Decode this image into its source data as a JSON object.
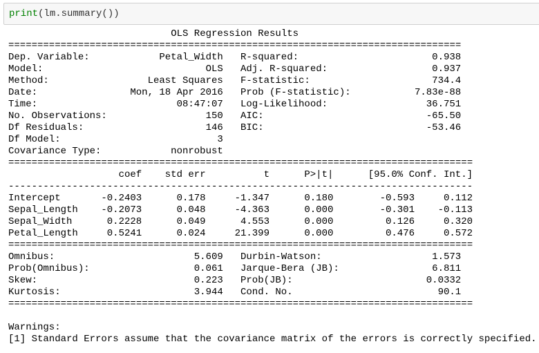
{
  "input": {
    "keyword": "print",
    "rest": "(lm.summary())"
  },
  "output": {
    "title": "OLS Regression Results",
    "rules": [
      "==============================================================================",
      "================================================================================",
      "--------------------------------------------------------------------------------",
      "================================================================================",
      "================================================================================"
    ],
    "model_info": [
      [
        "Dep. Variable:",
        "Petal_Width",
        "R-squared:",
        "0.938"
      ],
      [
        "Model:",
        "OLS",
        "Adj. R-squared:",
        "0.937"
      ],
      [
        "Method:",
        "Least Squares",
        "F-statistic:",
        "734.4"
      ],
      [
        "Date:",
        "Mon, 18 Apr 2016",
        "Prob (F-statistic):",
        "7.83e-88"
      ],
      [
        "Time:",
        "08:47:07",
        "Log-Likelihood:",
        "36.751"
      ],
      [
        "No. Observations:",
        "150",
        "AIC:",
        "-65.50"
      ],
      [
        "Df Residuals:",
        "146",
        "BIC:",
        "-53.46"
      ],
      [
        "Df Model:",
        "3"
      ],
      [
        "Covariance Type:",
        "nonrobust"
      ]
    ],
    "coef_header": [
      "coef",
      "std err",
      "t",
      "P>|t|",
      "[95.0% Conf. Int.]"
    ],
    "coef_rows": [
      [
        "Intercept",
        "-0.2403",
        "0.178",
        "-1.347",
        "0.180",
        "-0.593",
        "0.112"
      ],
      [
        "Sepal_Length",
        "-0.2073",
        "0.048",
        "-4.363",
        "0.000",
        "-0.301",
        "-0.113"
      ],
      [
        "Sepal_Width",
        "0.2228",
        "0.049",
        "4.553",
        "0.000",
        "0.126",
        "0.320"
      ],
      [
        "Petal_Length",
        "0.5241",
        "0.024",
        "21.399",
        "0.000",
        "0.476",
        "0.572"
      ]
    ],
    "diagnostics": [
      [
        "Omnibus:",
        "5.609",
        "Durbin-Watson:",
        "1.573"
      ],
      [
        "Prob(Omnibus):",
        "0.061",
        "Jarque-Bera (JB):",
        "6.811"
      ],
      [
        "Skew:",
        "0.223",
        "Prob(JB):",
        "0.0332"
      ],
      [
        "Kurtosis:",
        "3.944",
        "Cond. No.",
        "90.1"
      ]
    ],
    "warnings_title": "Warnings:",
    "warnings": [
      "[1] Standard Errors assume that the covariance matrix of the errors is correctly specified."
    ]
  }
}
